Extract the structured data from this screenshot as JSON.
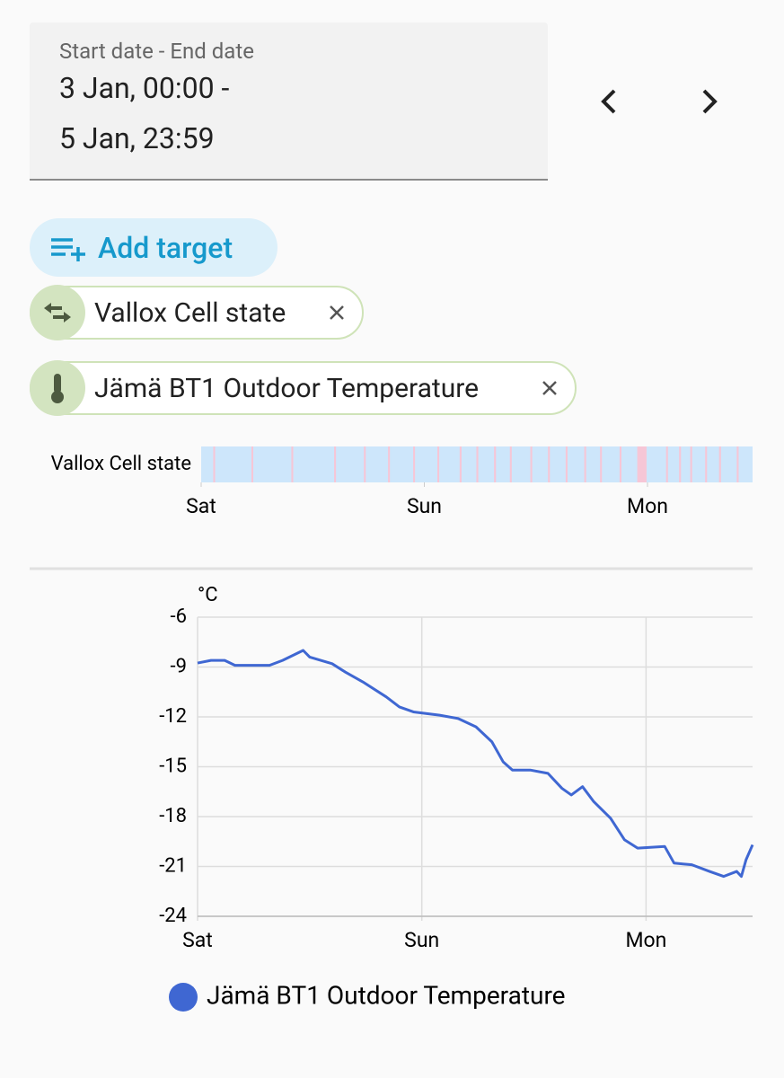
{
  "date_picker": {
    "label": "Start date - End date",
    "value_line_1": "3 Jan, 00:00 -",
    "value_line_2": "5 Jan, 23:59"
  },
  "add_target": "Add target",
  "targets": [
    {
      "label": "Vallox Cell state"
    },
    {
      "label": "Jämä BT1 Outdoor Temperature"
    }
  ],
  "chart_data": [
    {
      "type": "timeline",
      "label": "Vallox Cell state",
      "xlim": [
        0,
        59.3
      ],
      "xticks": [
        {
          "value": 0,
          "label": "Sat"
        },
        {
          "value": 24,
          "label": "Sun"
        },
        {
          "value": 48,
          "label": "Mon"
        }
      ],
      "base_color": "#cde6fb",
      "highlight_color": "#f6c6d6",
      "highlights": [
        [
          1.3,
          1.5
        ],
        [
          5.4,
          5.6
        ],
        [
          9.7,
          9.9
        ],
        [
          14.3,
          14.5
        ],
        [
          17.5,
          17.7
        ],
        [
          20.1,
          20.3
        ],
        [
          22.8,
          23.0
        ],
        [
          25.4,
          25.6
        ],
        [
          27.8,
          28.0
        ],
        [
          29.6,
          29.8
        ],
        [
          31.5,
          31.7
        ],
        [
          33.2,
          33.4
        ],
        [
          35.4,
          35.6
        ],
        [
          37.3,
          37.5
        ],
        [
          39.2,
          39.4
        ],
        [
          41.2,
          41.4
        ],
        [
          42.9,
          43.1
        ],
        [
          45.0,
          45.2
        ],
        [
          46.9,
          47.9
        ],
        [
          50.0,
          50.2
        ],
        [
          51.4,
          51.6
        ],
        [
          52.6,
          52.8
        ],
        [
          54.2,
          54.4
        ],
        [
          55.7,
          55.9
        ],
        [
          57.6,
          57.8
        ]
      ]
    },
    {
      "type": "line",
      "y_unit": "°C",
      "x": [
        0,
        1.44,
        2.9,
        4.0,
        7.7,
        9.1,
        11.3,
        12.0,
        14.4,
        15.8,
        17.7,
        20.2,
        21.6,
        23.1,
        25.9,
        27.9,
        29.8,
        31.5,
        32.7,
        33.7,
        35.6,
        37.5,
        39.0,
        40.0,
        41.2,
        42.4,
        44.2,
        45.7,
        47.1,
        50.0,
        51.0,
        52.9,
        54.8,
        56.3,
        57.7,
        58.2,
        58.7,
        59.4
      ],
      "series": [
        {
          "name": "Jämä BT1 Outdoor Temperature",
          "color": "#3f67d2",
          "values": [
            -8.76,
            -8.6,
            -8.6,
            -8.9,
            -8.9,
            -8.6,
            -8.0,
            -8.4,
            -8.8,
            -9.3,
            -9.9,
            -10.8,
            -11.4,
            -11.7,
            -11.9,
            -12.1,
            -12.6,
            -13.5,
            -14.7,
            -15.2,
            -15.2,
            -15.4,
            -16.3,
            -16.7,
            -16.2,
            -17.1,
            -18.1,
            -19.4,
            -19.9,
            -19.8,
            -20.8,
            -20.9,
            -21.3,
            -21.6,
            -21.3,
            -21.6,
            -20.6,
            -19.7
          ]
        }
      ],
      "xlim": [
        0,
        59.4
      ],
      "xticks": [
        {
          "value": 0,
          "label": "Sat"
        },
        {
          "value": 24,
          "label": "Sun"
        },
        {
          "value": 48,
          "label": "Mon"
        }
      ],
      "ylim": [
        -24,
        -6
      ],
      "yticks": [
        -6,
        -9,
        -12,
        -15,
        -18,
        -21,
        -24
      ],
      "grid": true
    }
  ]
}
